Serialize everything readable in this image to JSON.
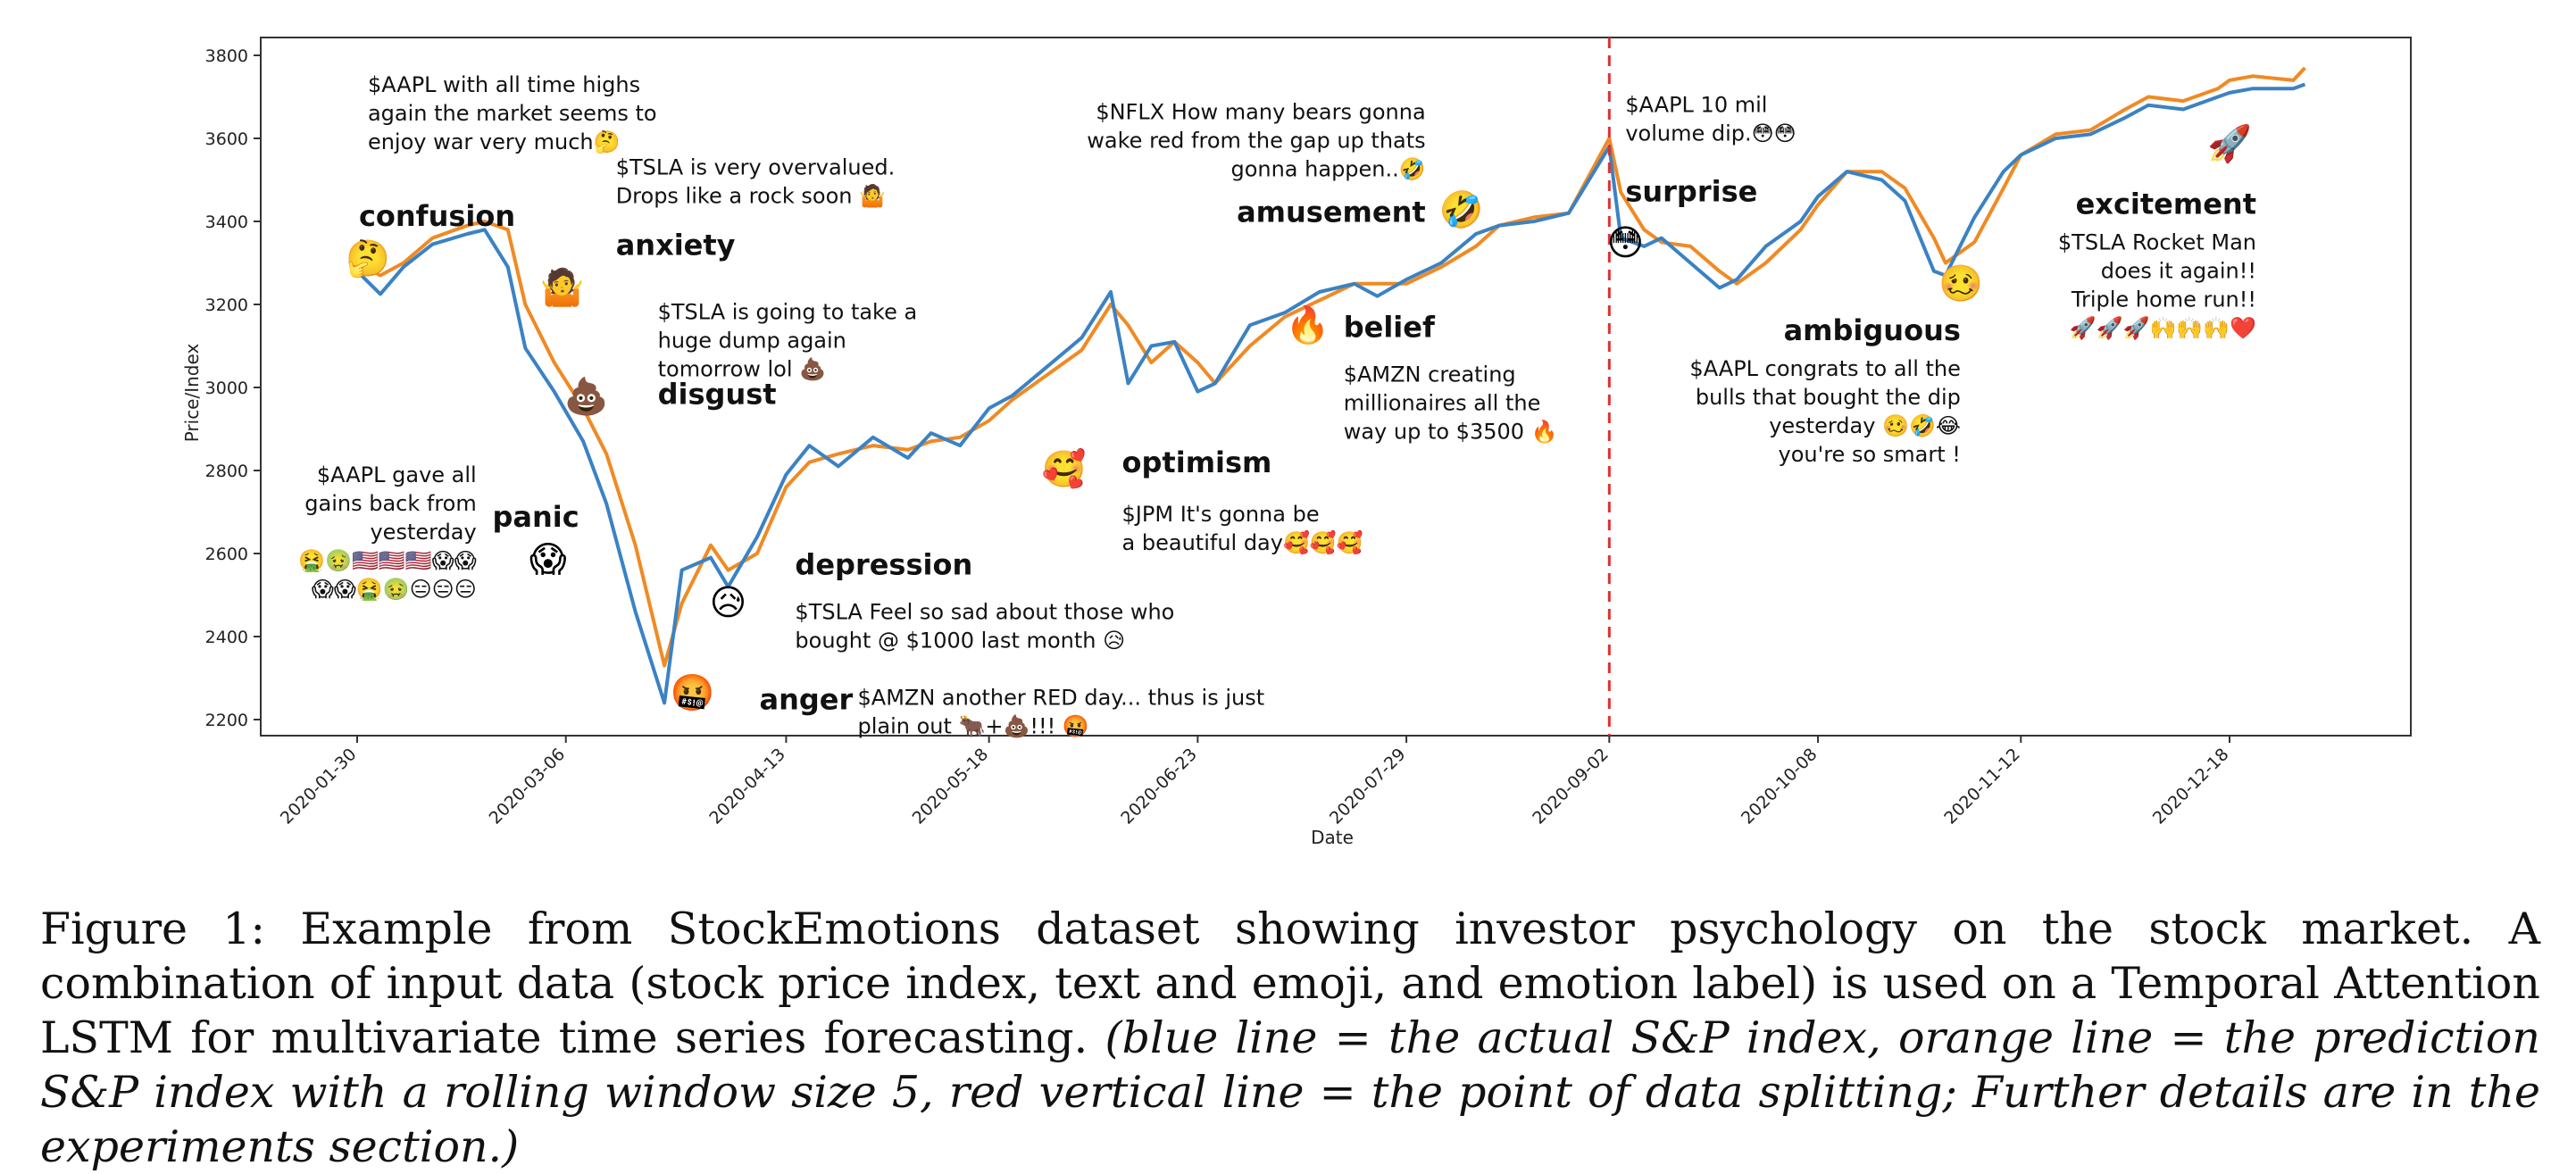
{
  "chart_data": {
    "type": "line",
    "xlabel": "Date",
    "ylabel": "Price/Index",
    "ylim": [
      2200,
      3800
    ],
    "yticks": [
      2200,
      2400,
      2600,
      2800,
      3000,
      3200,
      3400,
      3600,
      3800
    ],
    "xticks": [
      "2020-01-30",
      "2020-03-06",
      "2020-04-13",
      "2020-05-18",
      "2020-06-23",
      "2020-07-29",
      "2020-09-02",
      "2020-10-08",
      "2020-11-12",
      "2020-12-18"
    ],
    "split_date": "2020-09-02",
    "series": [
      {
        "color": "#3b82c4",
        "x": [
          "2020-01-30",
          "2020-02-03",
          "2020-02-07",
          "2020-02-12",
          "2020-02-18",
          "2020-02-21",
          "2020-02-25",
          "2020-02-28",
          "2020-03-04",
          "2020-03-09",
          "2020-03-13",
          "2020-03-18",
          "2020-03-23",
          "2020-03-26",
          "2020-03-31",
          "2020-04-03",
          "2020-04-08",
          "2020-04-13",
          "2020-04-17",
          "2020-04-22",
          "2020-04-28",
          "2020-05-04",
          "2020-05-08",
          "2020-05-13",
          "2020-05-18",
          "2020-05-22",
          "2020-05-28",
          "2020-06-03",
          "2020-06-08",
          "2020-06-11",
          "2020-06-15",
          "2020-06-19",
          "2020-06-23",
          "2020-06-26",
          "2020-07-02",
          "2020-07-08",
          "2020-07-14",
          "2020-07-20",
          "2020-07-24",
          "2020-07-29",
          "2020-08-04",
          "2020-08-10",
          "2020-08-14",
          "2020-08-20",
          "2020-08-26",
          "2020-09-02",
          "2020-09-04",
          "2020-09-08",
          "2020-09-11",
          "2020-09-16",
          "2020-09-21",
          "2020-09-24",
          "2020-09-29",
          "2020-10-05",
          "2020-10-08",
          "2020-10-13",
          "2020-10-19",
          "2020-10-23",
          "2020-10-28",
          "2020-10-30",
          "2020-11-04",
          "2020-11-09",
          "2020-11-12",
          "2020-11-18",
          "2020-11-24",
          "2020-11-30",
          "2020-12-04",
          "2020-12-10",
          "2020-12-16",
          "2020-12-18",
          "2020-12-22",
          "2020-12-29",
          "2020-12-31"
        ],
        "values": [
          3280,
          3225,
          3290,
          3345,
          3370,
          3380,
          3290,
          3095,
          2990,
          2870,
          2720,
          2460,
          2240,
          2560,
          2590,
          2520,
          2640,
          2790,
          2860,
          2810,
          2880,
          2830,
          2890,
          2860,
          2950,
          2980,
          3050,
          3120,
          3230,
          3010,
          3100,
          3110,
          2990,
          3010,
          3150,
          3180,
          3230,
          3250,
          3220,
          3260,
          3300,
          3370,
          3390,
          3400,
          3420,
          3580,
          3360,
          3340,
          3360,
          3300,
          3240,
          3260,
          3340,
          3400,
          3460,
          3520,
          3500,
          3450,
          3280,
          3270,
          3410,
          3520,
          3560,
          3600,
          3610,
          3650,
          3680,
          3670,
          3700,
          3710,
          3720,
          3720,
          3730
        ]
      },
      {
        "color": "#f08a24",
        "x": [
          "2020-01-30",
          "2020-02-03",
          "2020-02-07",
          "2020-02-12",
          "2020-02-18",
          "2020-02-21",
          "2020-02-25",
          "2020-02-28",
          "2020-03-04",
          "2020-03-09",
          "2020-03-13",
          "2020-03-18",
          "2020-03-23",
          "2020-03-26",
          "2020-03-31",
          "2020-04-03",
          "2020-04-08",
          "2020-04-13",
          "2020-04-17",
          "2020-04-22",
          "2020-04-28",
          "2020-05-04",
          "2020-05-08",
          "2020-05-13",
          "2020-05-18",
          "2020-05-22",
          "2020-05-28",
          "2020-06-03",
          "2020-06-08",
          "2020-06-11",
          "2020-06-15",
          "2020-06-19",
          "2020-06-23",
          "2020-06-26",
          "2020-07-02",
          "2020-07-08",
          "2020-07-14",
          "2020-07-20",
          "2020-07-24",
          "2020-07-29",
          "2020-08-04",
          "2020-08-10",
          "2020-08-14",
          "2020-08-20",
          "2020-08-26",
          "2020-09-02",
          "2020-09-04",
          "2020-09-08",
          "2020-09-11",
          "2020-09-16",
          "2020-09-21",
          "2020-09-24",
          "2020-09-29",
          "2020-10-05",
          "2020-10-08",
          "2020-10-13",
          "2020-10-19",
          "2020-10-23",
          "2020-10-28",
          "2020-10-30",
          "2020-11-04",
          "2020-11-09",
          "2020-11-12",
          "2020-11-18",
          "2020-11-24",
          "2020-11-30",
          "2020-12-04",
          "2020-12-10",
          "2020-12-16",
          "2020-12-18",
          "2020-12-22",
          "2020-12-29",
          "2020-12-31"
        ],
        "values": [
          3300,
          3270,
          3300,
          3360,
          3390,
          3400,
          3380,
          3200,
          3060,
          2950,
          2840,
          2620,
          2330,
          2480,
          2620,
          2560,
          2600,
          2760,
          2820,
          2840,
          2860,
          2850,
          2870,
          2880,
          2920,
          2970,
          3030,
          3090,
          3200,
          3150,
          3060,
          3110,
          3060,
          3010,
          3100,
          3170,
          3210,
          3250,
          3250,
          3250,
          3290,
          3340,
          3390,
          3410,
          3420,
          3600,
          3470,
          3380,
          3350,
          3340,
          3280,
          3250,
          3300,
          3380,
          3440,
          3520,
          3520,
          3480,
          3360,
          3300,
          3350,
          3480,
          3560,
          3610,
          3620,
          3670,
          3700,
          3690,
          3720,
          3740,
          3750,
          3740,
          3770
        ]
      }
    ],
    "annotations": [
      {
        "date": "2020-02-07",
        "level": 3260,
        "emoji": "🤔",
        "label": "confusion",
        "text": [
          "$AAPL with all time highs",
          "again the market seems to",
          "enjoy war very much🤔"
        ]
      },
      {
        "date": "2020-03-10",
        "level": 3190,
        "emoji": "🤷",
        "label": "anxiety",
        "text": [
          "$TSLA is very overvalued.",
          "Drops like a rock soon 🤷"
        ]
      },
      {
        "date": "2020-03-18",
        "level": 2950,
        "emoji": "💩",
        "label": "disgust",
        "text": [
          "$TSLA is going to take a",
          "huge dump again",
          "tomorrow lol 💩"
        ]
      },
      {
        "date": "2020-03-06",
        "level": 2450,
        "emoji": "😱",
        "label": "panic",
        "text": [
          "$AAPL gave all",
          "gains back from",
          "yesterday",
          "🤮🤢🇺🇸🇺🇸🇺🇸😱😱",
          "😱😱🤮🤢😑😑😑"
        ]
      },
      {
        "date": "2020-04-13",
        "level": 2550,
        "emoji": "😥",
        "label": "depression",
        "text": [
          "$TSLA Feel so sad about those who",
          "bought @ $1000 last month 😥"
        ]
      },
      {
        "date": "2020-04-03",
        "level": 2300,
        "emoji": "🤬",
        "label": "anger",
        "text": [
          "$AMZN another RED day... thus is just",
          "plain out 🐂+💩!!! 🤬"
        ]
      },
      {
        "date": "2020-06-03",
        "level": 2860,
        "emoji": "🥰",
        "label": "optimism",
        "text": [
          "$JPM It's gonna be",
          "a beautiful day🥰🥰🥰"
        ]
      },
      {
        "date": "2020-07-20",
        "level": 3420,
        "emoji": "🤣",
        "label": "amusement",
        "text": [
          "$NFLX How many bears gonna",
          "wake red from the gap up thats",
          "gonna happen..🤣"
        ]
      },
      {
        "date": "2020-07-12",
        "level": 3100,
        "emoji": "🔥",
        "label": "belief",
        "text": [
          "$AMZN creating",
          "millionaires all the",
          "way up to $3500 🔥"
        ]
      },
      {
        "date": "2020-09-04",
        "level": 3470,
        "emoji": "😳",
        "label": "surprise",
        "text": [
          "$AAPL 10 mil",
          "volume dip.😳😳"
        ]
      },
      {
        "date": "2020-10-28",
        "level": 3200,
        "emoji": "🥴",
        "label": "ambiguous",
        "text": [
          "$AAPL congrats to all the",
          "bulls that bought the dip",
          "yesterday 🥴🤣😂",
          "you're so smart !"
        ]
      },
      {
        "date": "2020-12-18",
        "level": 3580,
        "emoji": "🚀",
        "label": "excitement",
        "text": [
          "$TSLA Rocket Man",
          "does it again!!",
          "Triple home run!!",
          "🚀🚀🚀🙌🙌🙌❤️"
        ]
      }
    ]
  },
  "caption": {
    "main": "Figure 1: Example from StockEmotions dataset showing investor psychology on the stock market. A combination of input data (stock price index, text and emoji, and emotion label) is used on a Temporal Attention LSTM for multivariate time series forecasting.",
    "italic": "(blue line = the actual S&P index, orange line = the prediction S&P index with a rolling window size 5, red vertical line = the point of data splitting; Further details are in the experiments section.)"
  }
}
